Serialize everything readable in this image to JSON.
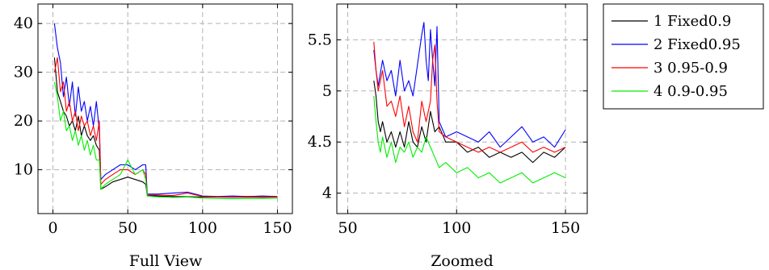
{
  "chart_data": [
    {
      "type": "line",
      "caption": "Full View",
      "xlim": [
        -10,
        160
      ],
      "ylim": [
        1,
        44
      ],
      "xticks": [
        0,
        50,
        100,
        150
      ],
      "yticks": [
        10,
        20,
        30,
        40
      ],
      "grid": true,
      "series": [
        {
          "name": "1 Fixed0.9",
          "color": "#000000",
          "x": [
            1,
            3,
            5,
            7,
            9,
            11,
            13,
            15,
            17,
            19,
            21,
            23,
            25,
            27,
            29,
            31,
            32,
            35,
            40,
            45,
            50,
            55,
            60,
            62,
            63,
            70,
            80,
            90,
            100,
            110,
            120,
            130,
            140,
            150
          ],
          "y": [
            33,
            26,
            24,
            22,
            21,
            19,
            20,
            18,
            21,
            17,
            19,
            17,
            16,
            17,
            15,
            14,
            6,
            6.5,
            7.5,
            8,
            8.5,
            8,
            7.5,
            7,
            4.7,
            4.6,
            4.5,
            4.45,
            4.4,
            4.4,
            4.35,
            4.4,
            4.35,
            4.4
          ]
        },
        {
          "name": "2 Fixed0.95",
          "color": "#0000ff",
          "x": [
            1,
            3,
            5,
            7,
            9,
            11,
            13,
            15,
            17,
            19,
            21,
            23,
            25,
            27,
            29,
            31,
            32,
            35,
            40,
            45,
            50,
            55,
            60,
            62,
            63,
            70,
            80,
            90,
            100,
            110,
            120,
            130,
            140,
            150
          ],
          "y": [
            40,
            35,
            32,
            25,
            29,
            23,
            28,
            21,
            27,
            22,
            24,
            20,
            23,
            19,
            24,
            18,
            8,
            9,
            10,
            11,
            11,
            10,
            11,
            11,
            5,
            5,
            5.2,
            5.4,
            4.6,
            4.5,
            4.6,
            4.5,
            4.6,
            4.5
          ]
        },
        {
          "name": "3 0.95-0.9",
          "color": "#ff0000",
          "x": [
            1,
            3,
            5,
            7,
            9,
            11,
            13,
            15,
            17,
            19,
            21,
            23,
            25,
            27,
            29,
            31,
            32,
            35,
            40,
            45,
            50,
            55,
            60,
            62,
            63,
            70,
            80,
            90,
            100,
            110,
            120,
            130,
            140,
            150
          ],
          "y": [
            30,
            33,
            26,
            28,
            22,
            24,
            20,
            22,
            18,
            21,
            19,
            20,
            17,
            19,
            16,
            20,
            7,
            8,
            9,
            10,
            10,
            9,
            10,
            9,
            4.8,
            4.8,
            4.7,
            5.2,
            4.5,
            4.45,
            4.4,
            4.5,
            4.45,
            4.45
          ]
        },
        {
          "name": "4 0.9-0.95",
          "color": "#00ee00",
          "x": [
            1,
            3,
            5,
            7,
            9,
            11,
            13,
            15,
            17,
            19,
            21,
            23,
            25,
            27,
            29,
            31,
            32,
            35,
            40,
            45,
            50,
            55,
            60,
            62,
            63,
            70,
            80,
            90,
            100,
            110,
            120,
            130,
            140,
            150
          ],
          "y": [
            28,
            25,
            20,
            22,
            18,
            19,
            16,
            18,
            15,
            17,
            14,
            16,
            13,
            15,
            12,
            12,
            6,
            7,
            8,
            9,
            12,
            9,
            10,
            8,
            4.6,
            4.4,
            4.3,
            4.4,
            4.2,
            4.1,
            4.05,
            4.1,
            4.1,
            4.15
          ]
        }
      ]
    },
    {
      "type": "line",
      "caption": "Zoomed",
      "xlim": [
        45,
        160
      ],
      "ylim": [
        3.8,
        5.85
      ],
      "xticks": [
        50,
        100,
        150
      ],
      "yticks": [
        4,
        4.5,
        5,
        5.5
      ],
      "yticklabels": [
        "4",
        "4.5",
        "5",
        "5.5"
      ],
      "grid": true,
      "series": [
        {
          "name": "1 Fixed0.9",
          "color": "#000000",
          "x": [
            62,
            63,
            64,
            65,
            66,
            68,
            70,
            72,
            74,
            76,
            78,
            80,
            82,
            84,
            86,
            88,
            90,
            92,
            95,
            100,
            105,
            110,
            115,
            120,
            125,
            130,
            135,
            140,
            145,
            150
          ],
          "y": [
            5.1,
            4.95,
            4.7,
            4.6,
            4.7,
            4.5,
            4.6,
            4.45,
            4.6,
            4.45,
            4.7,
            4.5,
            4.45,
            4.65,
            4.5,
            4.8,
            4.6,
            4.65,
            4.5,
            4.5,
            4.4,
            4.45,
            4.35,
            4.4,
            4.35,
            4.4,
            4.3,
            4.4,
            4.35,
            4.45
          ]
        },
        {
          "name": "2 Fixed0.95",
          "color": "#0000ff",
          "x": [
            62,
            63,
            64,
            66,
            68,
            70,
            72,
            74,
            76,
            78,
            80,
            82,
            84,
            85,
            86,
            87,
            88,
            89,
            90,
            91,
            92,
            95,
            100,
            105,
            110,
            115,
            120,
            125,
            130,
            135,
            140,
            145,
            150
          ],
          "y": [
            5.4,
            5.2,
            5.05,
            5.3,
            5.1,
            5.2,
            4.95,
            5.3,
            5.0,
            5.1,
            4.95,
            5.25,
            5.55,
            5.67,
            5.3,
            5.1,
            5.6,
            5.3,
            5.05,
            5.63,
            4.7,
            4.55,
            4.6,
            4.55,
            4.5,
            4.6,
            4.45,
            4.55,
            4.65,
            4.5,
            4.55,
            4.45,
            4.62
          ]
        },
        {
          "name": "3 0.95-0.9",
          "color": "#ff0000",
          "x": [
            62,
            63,
            64,
            66,
            68,
            70,
            72,
            74,
            76,
            78,
            80,
            82,
            84,
            86,
            88,
            89,
            90,
            91,
            92,
            95,
            100,
            105,
            110,
            115,
            120,
            125,
            130,
            135,
            140,
            145,
            150
          ],
          "y": [
            5.48,
            5.2,
            5.0,
            5.2,
            4.85,
            4.9,
            4.75,
            4.95,
            4.65,
            4.85,
            4.6,
            4.5,
            4.9,
            4.7,
            4.9,
            5.3,
            5.45,
            4.9,
            4.6,
            4.55,
            4.5,
            4.45,
            4.4,
            4.45,
            4.4,
            4.45,
            4.5,
            4.4,
            4.45,
            4.4,
            4.45
          ]
        },
        {
          "name": "4 0.9-0.95",
          "color": "#00ee00",
          "x": [
            62,
            63,
            64,
            65,
            66,
            68,
            70,
            72,
            74,
            76,
            78,
            80,
            82,
            84,
            86,
            88,
            90,
            92,
            95,
            100,
            105,
            110,
            115,
            120,
            125,
            130,
            135,
            140,
            145,
            150
          ],
          "y": [
            4.95,
            4.7,
            4.5,
            4.4,
            4.55,
            4.35,
            4.5,
            4.3,
            4.45,
            4.4,
            4.5,
            4.35,
            4.45,
            4.4,
            4.55,
            4.45,
            4.35,
            4.25,
            4.3,
            4.2,
            4.25,
            4.15,
            4.2,
            4.1,
            4.15,
            4.2,
            4.1,
            4.15,
            4.2,
            4.15
          ]
        }
      ]
    }
  ],
  "legend": {
    "placement": "right",
    "entries": [
      {
        "label": "1 Fixed0.9",
        "color": "#000000"
      },
      {
        "label": "2 Fixed0.95",
        "color": "#0000ff"
      },
      {
        "label": "3 0.95-0.9",
        "color": "#ff0000"
      },
      {
        "label": "4 0.9-0.95",
        "color": "#00ee00"
      }
    ]
  }
}
